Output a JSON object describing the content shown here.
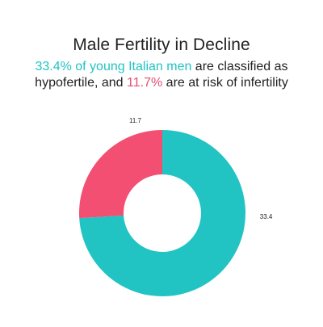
{
  "title": "Male Fertility in Decline",
  "subtitle": {
    "part1": "33.4% of young Italian men",
    "part2": " are classified as hypofertile, and ",
    "part3": "11.7%",
    "part4": " are at risk of infertility"
  },
  "colors": {
    "teal": "#22c3c3",
    "pink": "#f24f73"
  },
  "chart_data": {
    "type": "pie",
    "style": "donut",
    "categories": [
      "Hypofertile",
      "At risk of infertility"
    ],
    "values": [
      33.4,
      11.7
    ],
    "value_labels": [
      "33.4",
      "11.7"
    ],
    "colors": [
      "#22c3c3",
      "#f24f73"
    ],
    "title": "Male Fertility in Decline",
    "legend": "none"
  }
}
